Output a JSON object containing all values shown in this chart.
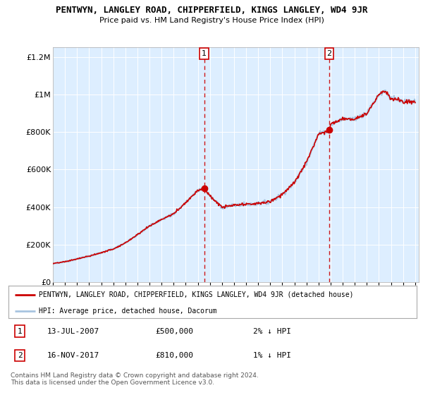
{
  "title": "PENTWYN, LANGLEY ROAD, CHIPPERFIELD, KINGS LANGLEY, WD4 9JR",
  "subtitle": "Price paid vs. HM Land Registry's House Price Index (HPI)",
  "ylim": [
    0,
    1250000
  ],
  "yticks": [
    0,
    200000,
    400000,
    600000,
    800000,
    1000000,
    1200000
  ],
  "ytick_labels": [
    "£0",
    "£200K",
    "£400K",
    "£600K",
    "£800K",
    "£1M",
    "£1.2M"
  ],
  "xstart_year": 1995,
  "xend_year": 2025,
  "hpi_color": "#a8c4e0",
  "price_color": "#cc0000",
  "dashed_color": "#cc0000",
  "sale1_year": 2007.53,
  "sale1_price": 500000,
  "sale2_year": 2017.88,
  "sale2_price": 810000,
  "legend_line1": "PENTWYN, LANGLEY ROAD, CHIPPERFIELD, KINGS LANGLEY, WD4 9JR (detached house)",
  "legend_line2": "HPI: Average price, detached house, Dacorum",
  "annotation1_label": "1",
  "annotation1_date": "13-JUL-2007",
  "annotation1_price": "£500,000",
  "annotation1_hpi": "2% ↓ HPI",
  "annotation2_label": "2",
  "annotation2_date": "16-NOV-2017",
  "annotation2_price": "£810,000",
  "annotation2_hpi": "1% ↓ HPI",
  "footer": "Contains HM Land Registry data © Crown copyright and database right 2024.\nThis data is licensed under the Open Government Licence v3.0.",
  "plot_bg": "#ddeeff",
  "outer_bg": "#ffffff",
  "grid_color": "#ffffff"
}
